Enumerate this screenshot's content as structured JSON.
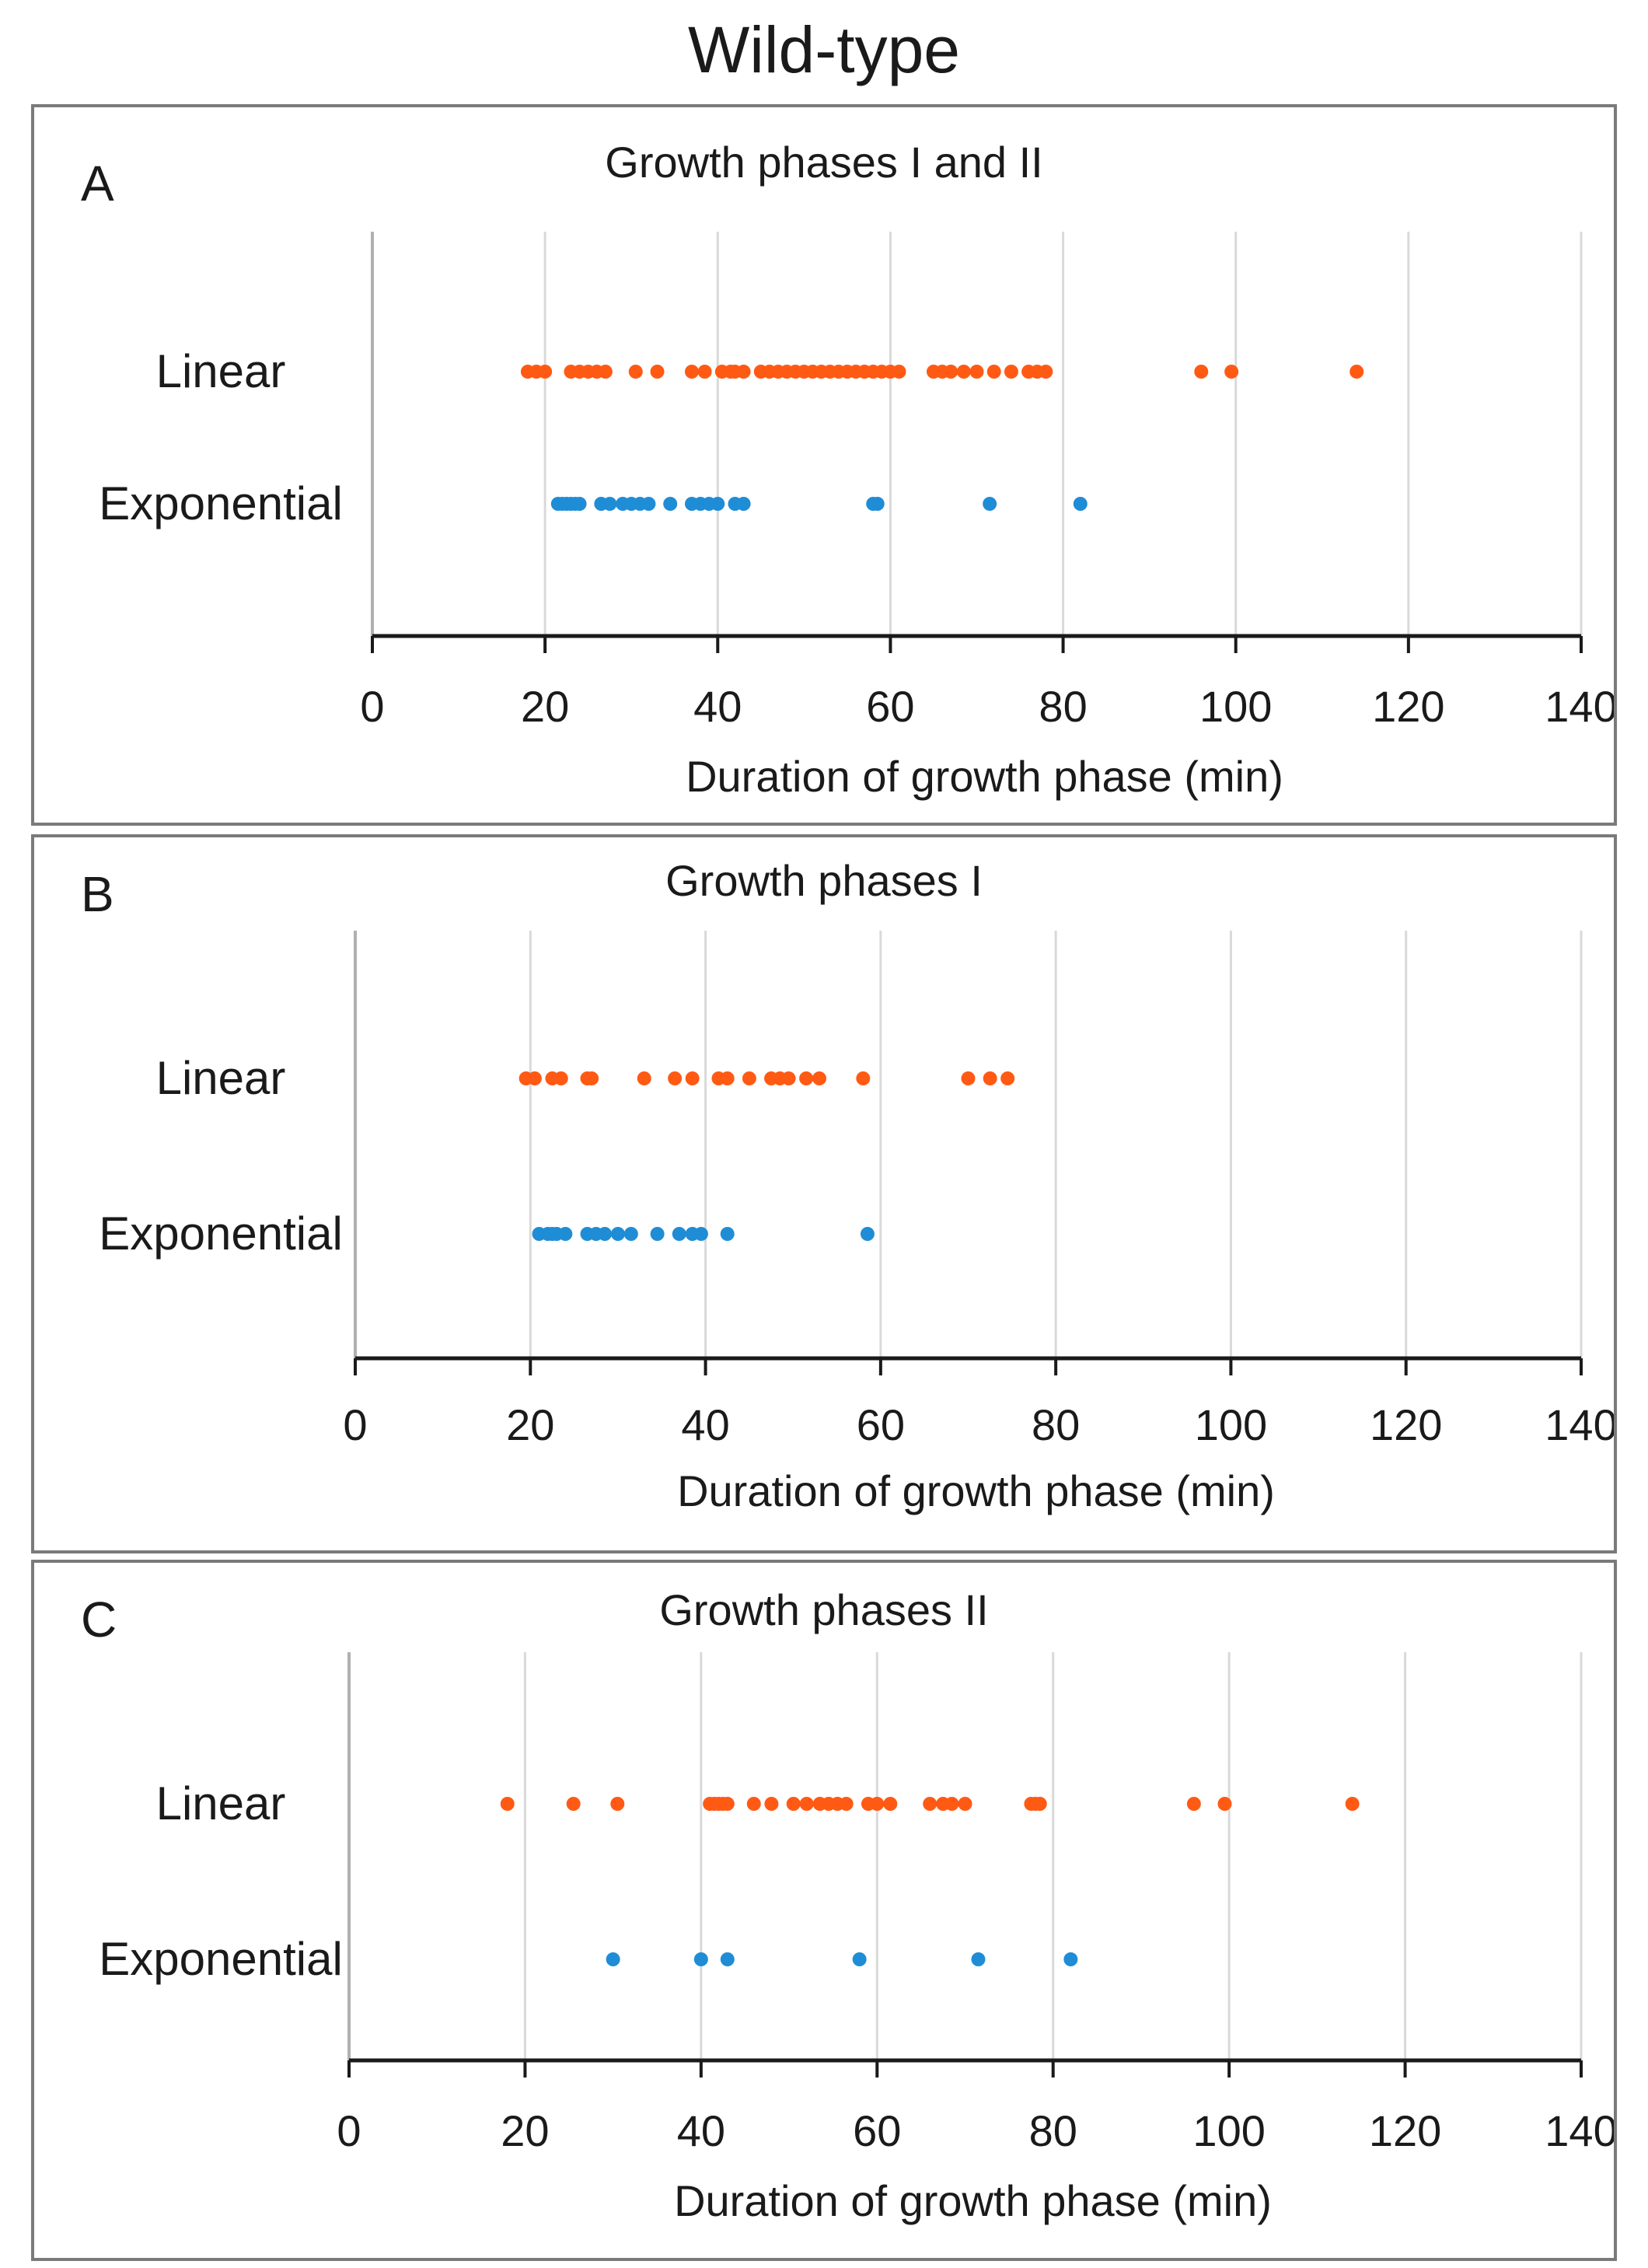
{
  "figure_title": "Wild-type",
  "colors": {
    "linear": "#FF5A14",
    "exponential": "#1F8DD6",
    "grid": "#d9d9d9",
    "axis": "#1a1a1a",
    "frame": "#7a7a7a"
  },
  "chart_data": [
    {
      "type": "scatter",
      "panel_letter": "A",
      "title": "Growth phases I and II",
      "xlabel": "Duration of growth phase (min)",
      "ylabel": "",
      "xlim": [
        0,
        140
      ],
      "xticks": [
        0,
        20,
        40,
        60,
        80,
        100,
        120,
        140
      ],
      "grid": true,
      "categories": [
        "Linear",
        "Exponential"
      ],
      "series": [
        {
          "name": "Linear",
          "category": "Linear",
          "x": [
            18,
            19,
            20,
            23,
            24,
            25,
            26,
            27,
            30.5,
            33,
            37,
            38.5,
            40.5,
            41.5,
            42,
            43,
            45,
            46,
            47,
            48,
            49,
            50,
            51,
            52,
            53,
            54,
            55,
            56,
            57,
            58,
            59,
            60,
            61,
            65,
            66,
            67,
            68.5,
            70,
            72,
            74,
            76,
            77,
            78,
            96,
            99.5,
            114
          ]
        },
        {
          "name": "Exponential",
          "category": "Exponential",
          "x": [
            21.5,
            22,
            22.5,
            23,
            23.5,
            24,
            26.5,
            27.5,
            29,
            30,
            31,
            32,
            34.5,
            37,
            38,
            39,
            40,
            42,
            43,
            58,
            58.5,
            71.5,
            82
          ]
        }
      ]
    },
    {
      "type": "scatter",
      "panel_letter": "B",
      "title": "Growth phases I",
      "xlabel": "Duration of growth phase (min)",
      "ylabel": "",
      "xlim": [
        0,
        140
      ],
      "xticks": [
        0,
        20,
        40,
        60,
        80,
        100,
        120,
        140
      ],
      "grid": true,
      "categories": [
        "Linear",
        "Exponential"
      ],
      "series": [
        {
          "name": "Linear",
          "category": "Linear",
          "x": [
            19.5,
            20.5,
            22.5,
            23.5,
            26.5,
            27,
            33,
            36.5,
            38.5,
            41.5,
            42.5,
            45,
            47.5,
            48.5,
            49.5,
            51.5,
            53,
            58,
            70,
            72.5,
            74.5
          ]
        },
        {
          "name": "Exponential",
          "category": "Exponential",
          "x": [
            21,
            22,
            22.5,
            23,
            24,
            26.5,
            27.5,
            28.5,
            30,
            31.5,
            34.5,
            37,
            38.5,
            39.5,
            42.5,
            58.5
          ]
        }
      ]
    },
    {
      "type": "scatter",
      "panel_letter": "C",
      "title": "Growth phases II",
      "xlabel": "Duration of growth phase (min)",
      "ylabel": "",
      "xlim": [
        0,
        140
      ],
      "xticks": [
        0,
        20,
        40,
        60,
        80,
        100,
        120,
        140
      ],
      "grid": true,
      "categories": [
        "Linear",
        "Exponential"
      ],
      "series": [
        {
          "name": "Linear",
          "category": "Linear",
          "x": [
            18,
            25.5,
            30.5,
            41,
            41.5,
            42,
            42.5,
            43,
            46,
            48,
            50.5,
            52,
            53.5,
            54.5,
            55.5,
            56.5,
            59,
            60,
            61.5,
            66,
            67.5,
            68.5,
            70,
            77.5,
            78,
            78.5,
            96,
            99.5,
            114
          ]
        },
        {
          "name": "Exponential",
          "category": "Exponential",
          "x": [
            30,
            40,
            43,
            58,
            71.5,
            82
          ]
        }
      ]
    }
  ]
}
